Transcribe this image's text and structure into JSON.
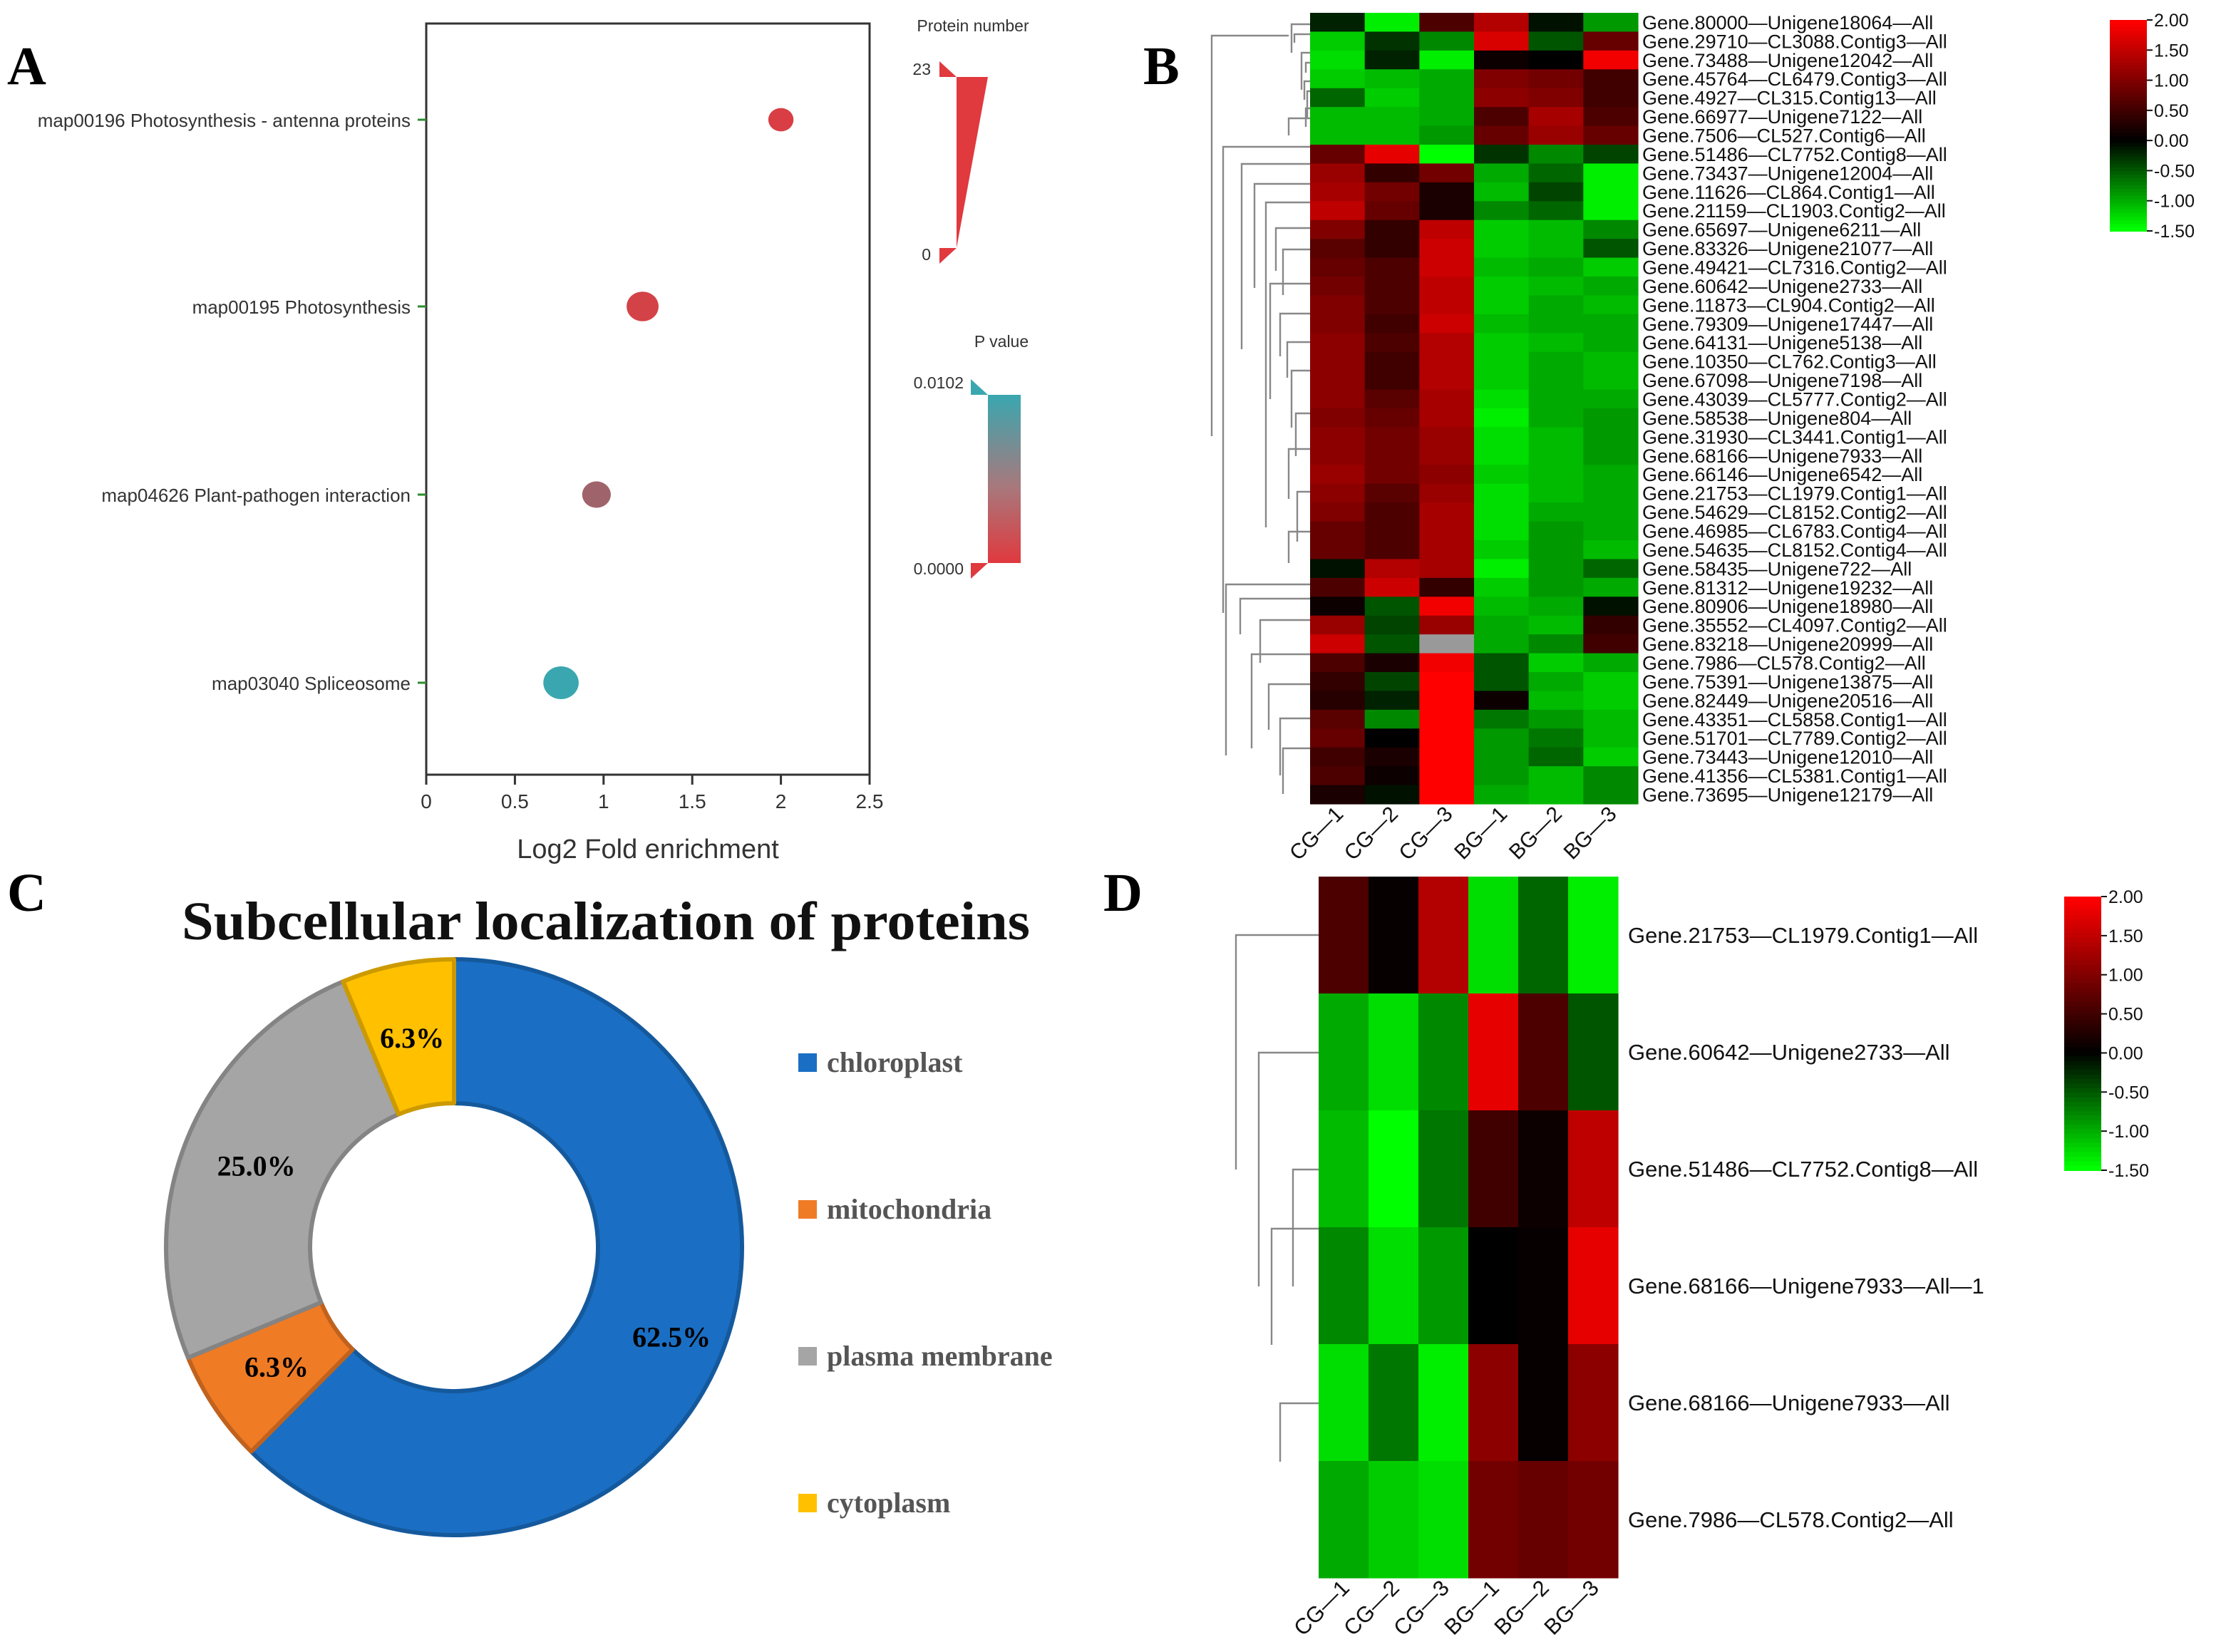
{
  "panels": [
    "A",
    "B",
    "C",
    "D"
  ],
  "chart_data": [
    {
      "panel": "A",
      "type": "scatter",
      "title": "",
      "xlabel": "Log2 Fold enrichment",
      "ylabel": "",
      "xlim": [
        0,
        2.5
      ],
      "xticks": [
        "0",
        "0.5",
        "1",
        "1.5",
        "2",
        "2.5"
      ],
      "categories": [
        "map00196 Photosynthesis - antenna proteins",
        "map00195 Photosynthesis",
        "map04626 Plant-pathogen interaction",
        "map03040 Spliceosome"
      ],
      "x": [
        2.0,
        1.22,
        0.96,
        0.76
      ],
      "protein_number": [
        2,
        4,
        3,
        5
      ],
      "p_value": [
        0.0005,
        0.0008,
        0.004,
        0.0102
      ],
      "size_legend": {
        "title": "Protein number",
        "max": "23",
        "min": "0"
      },
      "color_legend": {
        "title": "P value",
        "max": "0.0102",
        "min": "0.0000",
        "high_color": "#3aa7b0",
        "low_color": "#e0393e"
      }
    },
    {
      "panel": "B",
      "type": "heatmap",
      "columns": [
        "CG—1",
        "CG—2",
        "CG—3",
        "BG—1",
        "BG—2",
        "BG—3"
      ],
      "rows": [
        "Gene.80000—Unigene18064—All",
        "Gene.29710—CL3088.Contig3—All",
        "Gene.73488—Unigene12042—All",
        "Gene.45764—CL6479.Contig3—All",
        "Gene.4927—CL315.Contig13—All",
        "Gene.66977—Unigene7122—All",
        "Gene.7506—CL527.Contig6—All",
        "Gene.51486—CL7752.Contig8—All",
        "Gene.73437—Unigene12004—All",
        "Gene.11626—CL864.Contig1—All",
        "Gene.21159—CL1903.Contig2—All",
        "Gene.65697—Unigene6211—All",
        "Gene.83326—Unigene21077—All",
        "Gene.49421—CL7316.Contig2—All",
        "Gene.60642—Unigene2733—All",
        "Gene.11873—CL904.Contig2—All",
        "Gene.79309—Unigene17447—All",
        "Gene.64131—Unigene5138—All",
        "Gene.10350—CL762.Contig3—All",
        "Gene.67098—Unigene7198—All",
        "Gene.43039—CL5777.Contig2—All",
        "Gene.58538—Unigene804—All",
        "Gene.31930—CL3441.Contig1—All",
        "Gene.68166—Unigene7933—All",
        "Gene.66146—Unigene6542—All",
        "Gene.21753—CL1979.Contig1—All",
        "Gene.54629—CL8152.Contig2—All",
        "Gene.46985—CL6783.Contig4—All",
        "Gene.54635—CL8152.Contig4—All",
        "Gene.58435—Unigene722—All",
        "Gene.81312—Unigene19232—All",
        "Gene.80906—Unigene18980—All",
        "Gene.35552—CL4097.Contig2—All",
        "Gene.83218—Unigene20999—All",
        "Gene.7986—CL578.Contig2—All",
        "Gene.75391—Unigene13875—All",
        "Gene.82449—Unigene20516—All",
        "Gene.43351—CL5858.Contig1—All",
        "Gene.51701—CL7789.Contig2—All",
        "Gene.73443—Unigene12010—All",
        "Gene.41356—CL5381.Contig1—All",
        "Gene.73695—Unigene12179—All"
      ],
      "values": [
        [
          -0.2,
          -1.4,
          0.6,
          1.4,
          -0.1,
          -0.9
        ],
        [
          -1.2,
          -0.3,
          -0.8,
          1.7,
          -0.5,
          0.8
        ],
        [
          -1.3,
          -0.2,
          -1.4,
          0.1,
          0.0,
          1.9
        ],
        [
          -1.2,
          -1.1,
          -1.0,
          1.0,
          0.9,
          0.5
        ],
        [
          -0.6,
          -1.2,
          -1.0,
          1.1,
          1.0,
          0.5
        ],
        [
          -1.1,
          -1.1,
          -1.0,
          0.6,
          1.3,
          0.6
        ],
        [
          -1.1,
          -1.1,
          -0.9,
          0.8,
          1.2,
          0.8
        ],
        [
          0.8,
          1.8,
          -1.5,
          -0.3,
          -0.8,
          -0.4
        ],
        [
          1.2,
          0.4,
          0.9,
          -1.0,
          -0.6,
          -1.4
        ],
        [
          1.3,
          0.9,
          0.2,
          -1.1,
          -0.4,
          -1.4
        ],
        [
          1.5,
          0.8,
          0.2,
          -0.8,
          -0.6,
          -1.4
        ],
        [
          1.0,
          0.4,
          1.5,
          -1.2,
          -1.1,
          -0.8
        ],
        [
          0.7,
          0.4,
          1.6,
          -1.2,
          -1.1,
          -0.5
        ],
        [
          0.8,
          0.6,
          1.6,
          -1.1,
          -1.0,
          -1.2
        ],
        [
          0.9,
          0.6,
          1.5,
          -1.2,
          -1.1,
          -1.0
        ],
        [
          1.0,
          0.6,
          1.5,
          -1.2,
          -1.0,
          -1.1
        ],
        [
          1.0,
          0.5,
          1.6,
          -1.1,
          -1.0,
          -1.0
        ],
        [
          1.1,
          0.6,
          1.4,
          -1.2,
          -1.1,
          -1.0
        ],
        [
          1.1,
          0.5,
          1.4,
          -1.2,
          -1.0,
          -1.1
        ],
        [
          1.1,
          0.5,
          1.4,
          -1.2,
          -1.0,
          -1.1
        ],
        [
          1.1,
          0.7,
          1.3,
          -1.3,
          -1.0,
          -1.0
        ],
        [
          1.0,
          0.8,
          1.3,
          -1.4,
          -1.0,
          -0.9
        ],
        [
          1.1,
          0.9,
          1.2,
          -1.3,
          -1.1,
          -0.9
        ],
        [
          1.1,
          0.9,
          1.2,
          -1.3,
          -1.1,
          -0.9
        ],
        [
          1.2,
          0.9,
          1.1,
          -1.2,
          -1.1,
          -1.0
        ],
        [
          1.1,
          0.7,
          1.2,
          -1.3,
          -1.1,
          -1.0
        ],
        [
          1.0,
          0.6,
          1.3,
          -1.3,
          -1.0,
          -1.0
        ],
        [
          0.8,
          0.6,
          1.3,
          -1.3,
          -0.9,
          -1.0
        ],
        [
          0.8,
          0.6,
          1.3,
          -1.2,
          -0.9,
          -1.1
        ],
        [
          -0.1,
          1.4,
          1.3,
          -1.4,
          -0.9,
          -0.6
        ],
        [
          0.6,
          1.6,
          0.4,
          -1.2,
          -0.9,
          -1.0
        ],
        [
          0.1,
          -0.5,
          1.9,
          -1.1,
          -1.0,
          -0.1
        ],
        [
          1.2,
          -0.4,
          1.2,
          -1.0,
          -1.1,
          0.4
        ],
        [
          1.6,
          -0.5,
          null,
          -1.0,
          -0.8,
          0.5
        ],
        [
          0.6,
          0.2,
          1.9,
          -0.5,
          -1.2,
          -1.0
        ],
        [
          0.4,
          -0.4,
          2.0,
          -0.5,
          -1.0,
          -1.2
        ],
        [
          0.3,
          -0.2,
          2.0,
          0.1,
          -1.1,
          -1.2
        ],
        [
          0.7,
          -0.8,
          2.0,
          -0.7,
          -0.9,
          -1.1
        ],
        [
          0.8,
          0.0,
          2.0,
          -0.9,
          -0.7,
          -1.1
        ],
        [
          0.5,
          0.2,
          2.0,
          -0.9,
          -0.6,
          -1.2
        ],
        [
          0.6,
          0.1,
          2.0,
          -0.9,
          -1.1,
          -0.8
        ],
        [
          0.2,
          -0.1,
          2.0,
          -1.0,
          -1.1,
          -0.8
        ]
      ],
      "color_scale": {
        "min": -1.5,
        "max": 2.0,
        "ticks": [
          "2.00",
          "1.50",
          "1.00",
          "0.50",
          "0.00",
          "-0.50",
          "-1.00",
          "-1.50"
        ],
        "low": "#00ff00",
        "mid": "#000000",
        "high": "#ff0000",
        "missing": "#999999"
      }
    },
    {
      "panel": "C",
      "type": "pie",
      "title": "Subcellular localization of proteins",
      "labels": [
        "chloroplast",
        "mitochondria",
        "plasma membrane",
        "cytoplasm"
      ],
      "values": [
        62.5,
        6.3,
        25.0,
        6.3
      ],
      "value_labels": [
        "62.5%",
        "6.3%",
        "25.0%",
        "6.3%"
      ],
      "colors": [
        "#1a6fc4",
        "#f07b25",
        "#a5a5a5",
        "#ffc000"
      ],
      "hole": true
    },
    {
      "panel": "D",
      "type": "heatmap",
      "columns": [
        "CG—1",
        "CG—2",
        "CG—3",
        "BG—1",
        "BG—2",
        "BG—3"
      ],
      "rows": [
        "Gene.21753—CL1979.Contig1—All",
        "Gene.60642—Unigene2733—All",
        "Gene.51486—CL7752.Contig8—All",
        "Gene.68166—Unigene7933—All—1",
        "Gene.68166—Unigene7933—All",
        "Gene.7986—CL578.Contig2—All"
      ],
      "values": [
        [
          0.6,
          0.05,
          1.4,
          -1.3,
          -0.6,
          -1.4
        ],
        [
          -1.0,
          -1.3,
          -0.8,
          1.8,
          0.6,
          -0.5
        ],
        [
          -1.1,
          -1.5,
          -0.7,
          0.5,
          0.1,
          1.5
        ],
        [
          -0.8,
          -1.3,
          -0.9,
          0.0,
          0.05,
          1.8
        ],
        [
          -1.3,
          -0.7,
          -1.4,
          1.1,
          0.05,
          1.1
        ],
        [
          -1.0,
          -1.2,
          -1.3,
          0.9,
          0.8,
          0.9
        ]
      ],
      "color_scale": {
        "min": -1.5,
        "max": 2.0,
        "ticks": [
          "2.00",
          "1.50",
          "1.00",
          "0.50",
          "0.00",
          "-0.50",
          "-1.00",
          "-1.50"
        ],
        "low": "#00ff00",
        "mid": "#000000",
        "high": "#ff0000"
      }
    }
  ]
}
